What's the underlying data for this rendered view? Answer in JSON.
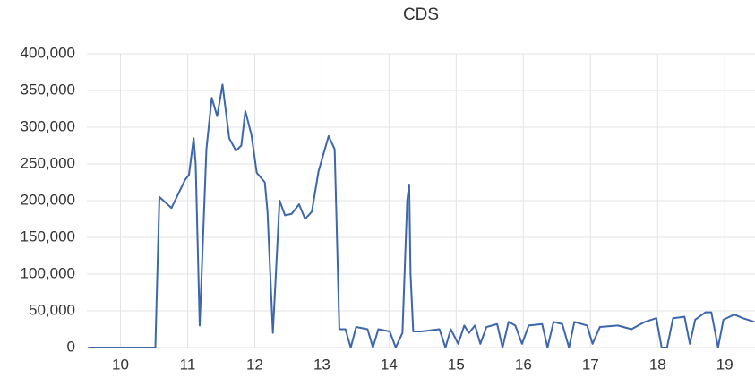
{
  "chart_data": {
    "type": "line",
    "title": "CDS",
    "x": [
      9.52,
      10.52,
      10.58,
      10.76,
      10.96,
      11.02,
      11.09,
      11.12,
      11.18,
      11.28,
      11.36,
      11.44,
      11.52,
      11.62,
      11.72,
      11.8,
      11.86,
      11.95,
      12.03,
      12.15,
      12.19,
      12.27,
      12.37,
      12.45,
      12.55,
      12.66,
      12.75,
      12.85,
      12.95,
      13.1,
      13.19,
      13.26,
      13.35,
      13.43,
      13.51,
      13.68,
      13.76,
      13.84,
      14.01,
      14.1,
      14.2,
      14.27,
      14.3,
      14.32,
      14.36,
      14.48,
      14.75,
      14.84,
      14.92,
      15.03,
      15.12,
      15.19,
      15.28,
      15.36,
      15.45,
      15.61,
      15.69,
      15.78,
      15.88,
      15.98,
      16.08,
      16.28,
      16.36,
      16.45,
      16.58,
      16.68,
      16.76,
      16.95,
      17.03,
      17.14,
      17.41,
      17.61,
      17.81,
      17.98,
      18.06,
      18.14,
      18.23,
      18.4,
      18.48,
      18.56,
      18.71,
      18.8,
      18.9,
      18.98,
      19.14,
      19.27,
      19.44
    ],
    "series": [
      {
        "name": "CDS",
        "color": "#3d66ad",
        "values": [
          0,
          0,
          205000,
          190000,
          228000,
          235000,
          285000,
          250000,
          30000,
          270000,
          340000,
          315000,
          358000,
          285000,
          268000,
          275000,
          322000,
          290000,
          238000,
          225000,
          185000,
          20000,
          200000,
          180000,
          182000,
          195000,
          175000,
          185000,
          240000,
          288000,
          270000,
          25000,
          25000,
          0,
          28000,
          25000,
          0,
          25000,
          22000,
          0,
          20000,
          200000,
          222000,
          100000,
          22000,
          22000,
          25000,
          0,
          25000,
          5000,
          30000,
          20000,
          30000,
          5000,
          28000,
          32000,
          0,
          35000,
          30000,
          5000,
          30000,
          32000,
          0,
          35000,
          32000,
          0,
          35000,
          30000,
          5000,
          28000,
          30000,
          25000,
          35000,
          40000,
          0,
          0,
          40000,
          42000,
          5000,
          38000,
          48000,
          48000,
          0,
          38000,
          45000,
          40000,
          35000
        ]
      }
    ],
    "xlim": [
      9.5,
      19.45
    ],
    "xticks": [
      10,
      11,
      12,
      13,
      14,
      15,
      16,
      17,
      18,
      19
    ],
    "ylim": [
      0,
      400000
    ],
    "yticks": [
      0,
      {
        "value": 50000,
        "label": "50,000"
      },
      {
        "value": 100000,
        "label": "100,000"
      },
      {
        "value": 150000,
        "label": "150,000"
      },
      {
        "value": 200000,
        "label": "200,000"
      },
      {
        "value": 250000,
        "label": "250,000"
      },
      {
        "value": 300000,
        "label": "300,000"
      },
      {
        "value": 350000,
        "label": "350,000"
      },
      {
        "value": 400000,
        "label": "400,000"
      }
    ],
    "grid": true
  }
}
